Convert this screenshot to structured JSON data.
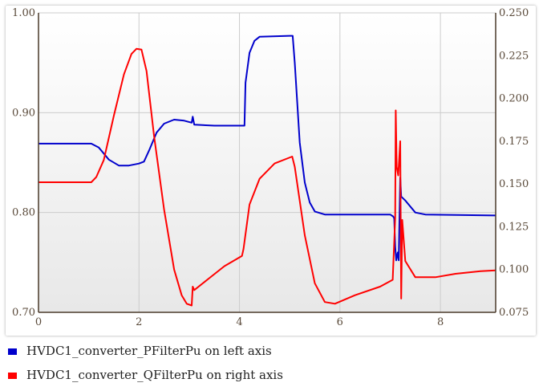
{
  "chart_data": {
    "type": "line",
    "title": "",
    "xlabel": "",
    "ylabel": "",
    "grid": true,
    "legend_position": "bottom",
    "x_axis": {
      "range": [
        0,
        9.1
      ],
      "ticks": [
        "0",
        "2",
        "4",
        "6",
        "8"
      ]
    },
    "y_left": {
      "range": [
        0.7,
        1.0
      ],
      "ticks": [
        "0.70",
        "0.80",
        "0.90",
        "1.00"
      ]
    },
    "y_right": {
      "range": [
        0.075,
        0.25
      ],
      "ticks": [
        "0.075",
        "0.100",
        "0.125",
        "0.150",
        "0.175",
        "0.200",
        "0.225",
        "0.250"
      ]
    },
    "series": [
      {
        "name": "HVDC1_converter_PFilterPu on left axis",
        "axis": "left",
        "color": "#0000cc",
        "points": [
          [
            0.0,
            0.869
          ],
          [
            1.05,
            0.869
          ],
          [
            1.2,
            0.865
          ],
          [
            1.4,
            0.853
          ],
          [
            1.6,
            0.847
          ],
          [
            1.8,
            0.847
          ],
          [
            2.0,
            0.849
          ],
          [
            2.1,
            0.851
          ],
          [
            2.2,
            0.862
          ],
          [
            2.35,
            0.88
          ],
          [
            2.5,
            0.889
          ],
          [
            2.7,
            0.893
          ],
          [
            2.9,
            0.892
          ],
          [
            3.05,
            0.89
          ],
          [
            3.07,
            0.896
          ],
          [
            3.1,
            0.888
          ],
          [
            3.5,
            0.887
          ],
          [
            4.1,
            0.887
          ],
          [
            4.12,
            0.93
          ],
          [
            4.2,
            0.96
          ],
          [
            4.3,
            0.972
          ],
          [
            4.4,
            0.976
          ],
          [
            5.0,
            0.977
          ],
          [
            5.06,
            0.977
          ],
          [
            5.1,
            0.95
          ],
          [
            5.15,
            0.91
          ],
          [
            5.2,
            0.87
          ],
          [
            5.3,
            0.83
          ],
          [
            5.4,
            0.81
          ],
          [
            5.5,
            0.801
          ],
          [
            5.7,
            0.798
          ],
          [
            7.0,
            0.798
          ],
          [
            7.06,
            0.796
          ],
          [
            7.08,
            0.794
          ],
          [
            7.1,
            0.766
          ],
          [
            7.12,
            0.752
          ],
          [
            7.15,
            0.76
          ],
          [
            7.17,
            0.752
          ],
          [
            7.2,
            0.835
          ],
          [
            7.22,
            0.816
          ],
          [
            7.3,
            0.812
          ],
          [
            7.5,
            0.8
          ],
          [
            7.7,
            0.798
          ],
          [
            9.1,
            0.797
          ]
        ]
      },
      {
        "name": "HVDC1_converter_QFilterPu on right axis",
        "axis": "right",
        "color": "#ff0000",
        "points": [
          [
            0.0,
            0.151
          ],
          [
            1.05,
            0.151
          ],
          [
            1.15,
            0.154
          ],
          [
            1.3,
            0.164
          ],
          [
            1.5,
            0.19
          ],
          [
            1.7,
            0.214
          ],
          [
            1.85,
            0.226
          ],
          [
            1.95,
            0.229
          ],
          [
            2.05,
            0.2285
          ],
          [
            2.15,
            0.216
          ],
          [
            2.3,
            0.178
          ],
          [
            2.5,
            0.135
          ],
          [
            2.7,
            0.1
          ],
          [
            2.85,
            0.085
          ],
          [
            2.95,
            0.08
          ],
          [
            3.05,
            0.079
          ],
          [
            3.07,
            0.09
          ],
          [
            3.1,
            0.088
          ],
          [
            3.4,
            0.095
          ],
          [
            3.7,
            0.102
          ],
          [
            4.05,
            0.108
          ],
          [
            4.08,
            0.112
          ],
          [
            4.2,
            0.138
          ],
          [
            4.4,
            0.153
          ],
          [
            4.7,
            0.162
          ],
          [
            5.05,
            0.166
          ],
          [
            5.1,
            0.16
          ],
          [
            5.3,
            0.12
          ],
          [
            5.5,
            0.092
          ],
          [
            5.7,
            0.081
          ],
          [
            5.9,
            0.08
          ],
          [
            6.3,
            0.085
          ],
          [
            6.8,
            0.09
          ],
          [
            7.05,
            0.094
          ],
          [
            7.1,
            0.13
          ],
          [
            7.11,
            0.193
          ],
          [
            7.13,
            0.16
          ],
          [
            7.16,
            0.155
          ],
          [
            7.2,
            0.175
          ],
          [
            7.22,
            0.083
          ],
          [
            7.24,
            0.129
          ],
          [
            7.3,
            0.105
          ],
          [
            7.5,
            0.0955
          ],
          [
            7.9,
            0.0955
          ],
          [
            8.3,
            0.0975
          ],
          [
            8.8,
            0.099
          ],
          [
            9.1,
            0.0995
          ]
        ]
      }
    ]
  }
}
